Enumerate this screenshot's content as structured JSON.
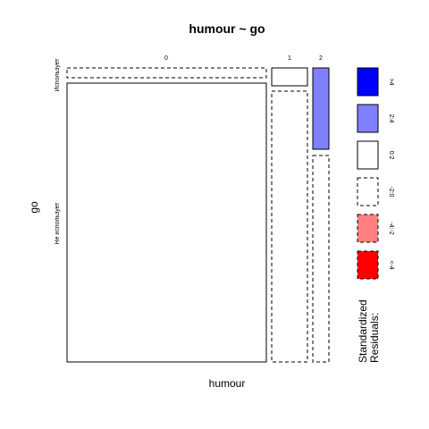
{
  "chart_data": {
    "type": "mosaic",
    "title": "humour ~ go",
    "xlabel": "humour",
    "ylabel": "go",
    "x_categories": [
      "0",
      "1",
      "2"
    ],
    "y_categories": [
      "Использует",
      "Не использует"
    ],
    "cells": [
      {
        "x": "0",
        "y": "Использует",
        "residual_bin": "-2:0"
      },
      {
        "x": "0",
        "y": "Не использует",
        "residual_bin": "0:2"
      },
      {
        "x": "1",
        "y": "Использует",
        "residual_bin": "0:2"
      },
      {
        "x": "1",
        "y": "Не использует",
        "residual_bin": "-2:0"
      },
      {
        "x": "2",
        "y": "Использует",
        "residual_bin": "2:4"
      },
      {
        "x": "2",
        "y": "Не использует",
        "residual_bin": "-2:0"
      }
    ],
    "legend": {
      "title": "Standardized Residuals:",
      "placement": "right",
      "bins": [
        {
          "label": ">4",
          "color": "#0000ff",
          "dashed": false
        },
        {
          "label": "2:4",
          "color": "#8080ff",
          "dashed": false
        },
        {
          "label": "0:2",
          "color": "#ffffff",
          "dashed": false
        },
        {
          "label": "-2:0",
          "color": "#ffffff",
          "dashed": true
        },
        {
          "label": "-4:-2",
          "color": "#ff8080",
          "dashed": true
        },
        {
          "label": "<-4",
          "color": "#ff0000",
          "dashed": true
        }
      ]
    }
  }
}
